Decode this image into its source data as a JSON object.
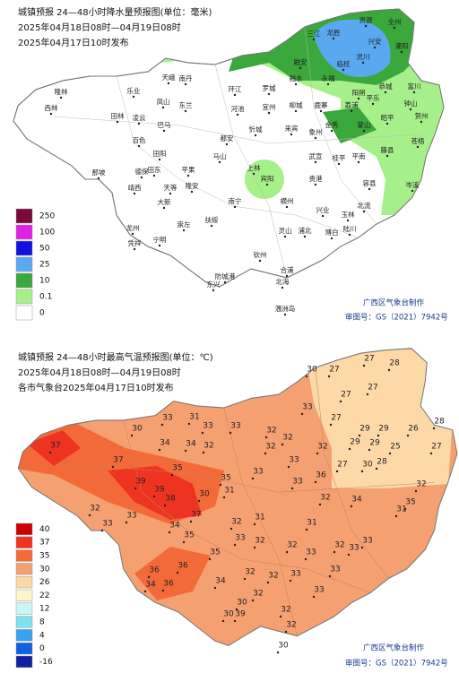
{
  "precip_map": {
    "title": [
      "城镇预报 24—48小时降水量预报图(单位：毫米)",
      "2025年04月18日08时—04月19日08时",
      "2025年04月17日10时发布"
    ],
    "legend": {
      "values": [
        250,
        100,
        50,
        25,
        10,
        0.1,
        0
      ],
      "colors": [
        "#7a0a3a",
        "#e020e0",
        "#1010e0",
        "#5aa8f0",
        "#3aa83a",
        "#a6f08a",
        "#ffffff"
      ]
    },
    "credit": "广西区气象台制作",
    "approval": "审图号：GS（2021）7942号",
    "cities": [
      "资源",
      "全州",
      "三江",
      "龙胜",
      "灌阳",
      "兴安",
      "灵川",
      "临桂",
      "融安",
      "融水",
      "永福",
      "阳朔",
      "恭城",
      "富川",
      "南丹",
      "天峨",
      "环江",
      "罗城",
      "河池",
      "宜州",
      "柳城",
      "鹿寨",
      "荔浦",
      "平乐",
      "钟山",
      "贺州",
      "昭平",
      "隆林",
      "西林",
      "乐业",
      "凤山",
      "东兰",
      "巴马",
      "田林",
      "凌云",
      "百色",
      "田阳",
      "田东",
      "都安",
      "忻城",
      "来宾",
      "象州",
      "金秀",
      "蒙山",
      "苍梧",
      "藤县",
      "平南",
      "桂平",
      "武宣",
      "上林",
      "宾阳",
      "贵港",
      "容县",
      "岑溪",
      "北流",
      "玉林",
      "兴业",
      "横州",
      "南宁",
      "隆安",
      "马山",
      "平果",
      "德保",
      "靖西",
      "那坡",
      "天等",
      "大新",
      "龙州",
      "凭祥",
      "宁明",
      "崇左",
      "扶绥",
      "钦州",
      "灵山",
      "浦北",
      "博白",
      "陆川",
      "防城港",
      "东兴",
      "合浦",
      "北海",
      "涠洲岛"
    ]
  },
  "temp_map": {
    "title": [
      "城镇预报 24—48小时最高气温预报图(单位：℃)",
      "2025年04月18日08时—04月19日08时",
      "各市气象台2025年04月17日10时发布"
    ],
    "legend": {
      "values": [
        40,
        37,
        35,
        30,
        26,
        22,
        12,
        8,
        4,
        0,
        -16
      ],
      "colors": [
        "#cc0000",
        "#ee3322",
        "#f26a3a",
        "#f5a070",
        "#fcd9a6",
        "#fdf5c8",
        "#ccf5f5",
        "#7ee0f0",
        "#3aa0f0",
        "#1060e0",
        "#1020a0"
      ]
    },
    "credit": "广西区气象台制作",
    "approval": "审图号：GS（2021）7942号",
    "temperatures": [
      37,
      30,
      33,
      31,
      33,
      33,
      32,
      33,
      30,
      27,
      27,
      28,
      27,
      27,
      27,
      29,
      29,
      26,
      28,
      27,
      25,
      29,
      29,
      27,
      30,
      28,
      32,
      34,
      34,
      32,
      32,
      32,
      32,
      33,
      37,
      35,
      39,
      39,
      38,
      35,
      33,
      31,
      30,
      36,
      33,
      32,
      34,
      31,
      35,
      32,
      33,
      33,
      37,
      34,
      35,
      32,
      31,
      33,
      32,
      31,
      33,
      33,
      32,
      33,
      32,
      35,
      36,
      36,
      34,
      32,
      32,
      33,
      33,
      33,
      34,
      36,
      32,
      30,
      30,
      39,
      32,
      32,
      30
    ]
  }
}
